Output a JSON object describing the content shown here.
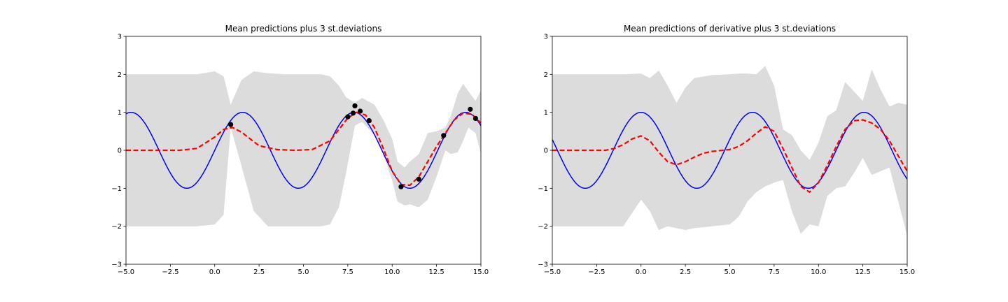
{
  "chart_data": [
    {
      "type": "line",
      "title": "Mean predictions plus 3 st.deviations",
      "xlabel": "",
      "ylabel": "",
      "xlim": [
        -5,
        15
      ],
      "ylim": [
        -3,
        3
      ],
      "grid": false,
      "xticks": [
        -5,
        -2.5,
        0,
        2.5,
        5,
        7.5,
        10,
        12.5,
        15
      ],
      "xtick_labels": [
        "−5.0",
        "−2.5",
        "0.0",
        "2.5",
        "5.0",
        "7.5",
        "10.0",
        "12.5",
        "15.0"
      ],
      "yticks": [
        -3,
        -2,
        -1,
        0,
        1,
        2,
        3
      ],
      "ytick_labels": [
        "−3",
        "−2",
        "−1",
        "0",
        "1",
        "2",
        "3"
      ],
      "band_color": "#dcdcdc",
      "band": {
        "x": [
          -5,
          -1,
          0,
          0.5,
          0.9,
          1.5,
          2.2,
          3,
          4,
          5,
          6,
          6.5,
          7,
          7.4,
          7.9,
          8.3,
          9,
          9.5,
          10,
          10.3,
          10.7,
          11,
          11.5,
          12,
          12.5,
          13,
          13.3,
          13.7,
          14,
          14.3,
          14.7,
          15
        ],
        "upper": [
          2.0,
          2.0,
          2.08,
          1.95,
          1.2,
          1.85,
          2.08,
          2.03,
          2.0,
          2.0,
          2.0,
          1.95,
          1.7,
          1.4,
          1.25,
          1.38,
          1.2,
          0.8,
          0.3,
          -0.3,
          -0.45,
          -0.3,
          -0.1,
          0.45,
          0.5,
          0.6,
          0.9,
          1.5,
          1.75,
          1.55,
          1.3,
          1.58
        ],
        "lower": [
          -2.0,
          -2.0,
          -1.95,
          -1.7,
          0.6,
          -0.4,
          -1.6,
          -2.0,
          -2.0,
          -2.0,
          -2.0,
          -1.95,
          -1.5,
          -0.6,
          0.65,
          0.75,
          0.4,
          -0.1,
          -0.8,
          -1.35,
          -1.45,
          -1.42,
          -1.5,
          -1.3,
          -0.7,
          0.0,
          -0.1,
          -0.05,
          0.25,
          0.6,
          0.45,
          -0.1
        ]
      },
      "series": [
        {
          "color": "#0000ff",
          "style": "solid",
          "function": "sin"
        },
        {
          "color": "#ff0000",
          "style": "dashed",
          "x": [
            -5,
            -2,
            -1,
            0,
            0.5,
            1,
            1.5,
            2.5,
            3.5,
            4.5,
            5.5,
            6.5,
            7,
            7.5,
            8,
            8.5,
            9,
            9.5,
            10,
            10.5,
            11,
            11.5,
            12,
            12.5,
            13,
            13.5,
            14,
            14.5,
            15
          ],
          "y": [
            0.0,
            0.0,
            0.05,
            0.35,
            0.55,
            0.6,
            0.48,
            0.12,
            0.02,
            0.0,
            0.02,
            0.25,
            0.55,
            0.85,
            1.0,
            0.93,
            0.6,
            0.05,
            -0.55,
            -0.9,
            -0.92,
            -0.7,
            -0.3,
            0.1,
            0.45,
            0.8,
            0.98,
            0.95,
            0.72
          ]
        }
      ],
      "points": {
        "color": "#000000",
        "x": [
          0.9,
          7.5,
          7.8,
          7.9,
          8.2,
          8.7,
          10.5,
          11.5,
          12.9,
          14.4,
          14.7
        ],
        "y": [
          0.68,
          0.88,
          0.98,
          1.17,
          1.03,
          0.78,
          -0.96,
          -0.76,
          0.39,
          1.08,
          0.84
        ]
      }
    },
    {
      "type": "line",
      "title": "Mean predictions of derivative plus 3 st.deviations",
      "xlabel": "",
      "ylabel": "",
      "xlim": [
        -5,
        15
      ],
      "ylim": [
        -3,
        3
      ],
      "grid": false,
      "xticks": [
        -5,
        -2.5,
        0,
        2.5,
        5,
        7.5,
        10,
        12.5,
        15
      ],
      "xtick_labels": [
        "−5.0",
        "−2.5",
        "0.0",
        "2.5",
        "5.0",
        "7.5",
        "10.0",
        "12.5",
        "15.0"
      ],
      "yticks": [
        -3,
        -2,
        -1,
        0,
        1,
        2,
        3
      ],
      "ytick_labels": [
        "−3",
        "−2",
        "−1",
        "0",
        "1",
        "2",
        "3"
      ],
      "band_color": "#dcdcdc",
      "band": {
        "x": [
          -5,
          -1,
          0,
          0.5,
          1,
          1.5,
          2,
          2.5,
          3,
          4,
          5,
          5.5,
          6,
          6.5,
          7,
          7.5,
          8,
          8.5,
          9,
          9.5,
          10,
          10.5,
          11,
          11.5,
          12,
          12.5,
          13,
          13.5,
          14,
          14.5,
          15
        ],
        "upper": [
          2.0,
          2.0,
          2.02,
          1.9,
          2.1,
          1.7,
          1.25,
          1.65,
          1.9,
          1.98,
          2.0,
          2.02,
          2.02,
          2.0,
          2.22,
          1.7,
          0.55,
          0.4,
          0.0,
          -0.25,
          0.2,
          0.9,
          1.05,
          1.8,
          1.55,
          1.3,
          2.13,
          1.6,
          1.15,
          1.25,
          1.2
        ],
        "lower": [
          -2.0,
          -2.0,
          -1.3,
          -1.6,
          -2.1,
          -2.0,
          -2.05,
          -2.1,
          -2.05,
          -2.0,
          -1.95,
          -1.75,
          -1.35,
          -1.1,
          -0.95,
          -0.85,
          -0.78,
          -1.6,
          -2.2,
          -1.95,
          -2.0,
          -1.2,
          -1.0,
          -0.95,
          -0.6,
          -0.2,
          -0.65,
          -0.55,
          -0.45,
          -1.35,
          -2.25
        ]
      },
      "series": [
        {
          "color": "#0000ff",
          "style": "solid",
          "function": "cos"
        },
        {
          "color": "#ff0000",
          "style": "dashed",
          "x": [
            -5,
            -2,
            -1.5,
            -1,
            -0.5,
            0,
            0.5,
            1,
            1.5,
            2,
            2.5,
            3,
            3.5,
            4,
            5,
            5.5,
            6,
            6.5,
            7,
            7.5,
            8,
            8.5,
            9,
            9.5,
            10,
            10.5,
            11,
            11.5,
            12,
            12.5,
            13,
            13.5,
            14,
            14.5,
            15
          ],
          "y": [
            0.0,
            0.0,
            0.05,
            0.15,
            0.3,
            0.38,
            0.25,
            -0.05,
            -0.3,
            -0.38,
            -0.3,
            -0.18,
            -0.08,
            -0.03,
            0.02,
            0.1,
            0.25,
            0.45,
            0.62,
            0.5,
            0.05,
            -0.45,
            -0.95,
            -1.1,
            -0.85,
            -0.4,
            0.1,
            0.55,
            0.78,
            0.8,
            0.72,
            0.55,
            0.25,
            -0.15,
            -0.55
          ]
        }
      ]
    }
  ]
}
